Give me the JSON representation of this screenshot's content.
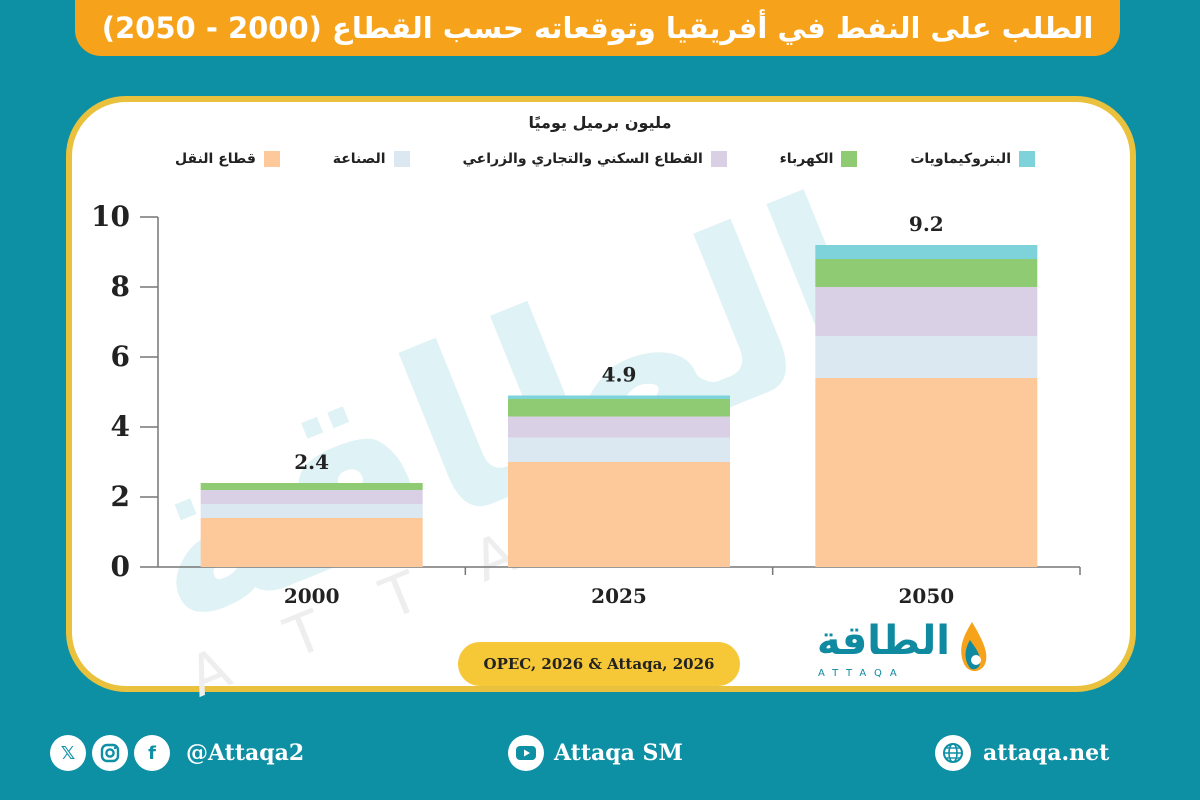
{
  "header": {
    "title": "الطلب على النفط في أفريقيا وتوقعاته حسب القطاع (2000 - 2050)"
  },
  "watermark": {
    "arabic": "الطاقة",
    "latin": "ATTAQA"
  },
  "source": {
    "text": "OPEC, 2026 & Attaqa, 2026"
  },
  "logo": {
    "arabic": "الطاقة",
    "latin": "ATTAQA"
  },
  "footer": {
    "social_handle": "@Attaqa2",
    "youtube": "Attaqa SM",
    "website": "attaqa.net",
    "icons": [
      "x-icon",
      "instagram-icon",
      "facebook-icon",
      "youtube-icon",
      "globe-icon"
    ]
  },
  "chart_data": {
    "type": "bar",
    "stacked": true,
    "unit_label": "مليون برميل يوميًا",
    "categories": [
      "2000",
      "2025",
      "2050"
    ],
    "ylim": [
      0,
      10
    ],
    "yticks": [
      0,
      2,
      4,
      6,
      8,
      10
    ],
    "legend_position": "top",
    "grid": false,
    "series": [
      {
        "name": "قطاع النقل",
        "color": "#fdc99b",
        "values": [
          1.4,
          3.0,
          5.4
        ]
      },
      {
        "name": "الصناعة",
        "color": "#dbe7f1",
        "values": [
          0.4,
          0.7,
          1.2
        ]
      },
      {
        "name": "القطاع السكني والتجاري والزراعي",
        "color": "#d9d0e6",
        "values": [
          0.4,
          0.6,
          1.4
        ]
      },
      {
        "name": "الكهرباء",
        "color": "#8fcb72",
        "values": [
          0.2,
          0.5,
          0.8
        ]
      },
      {
        "name": "البتروكيماويات",
        "color": "#7ed3da",
        "values": [
          0.0,
          0.1,
          0.4
        ]
      }
    ],
    "totals": [
      2.4,
      4.9,
      9.2
    ]
  }
}
